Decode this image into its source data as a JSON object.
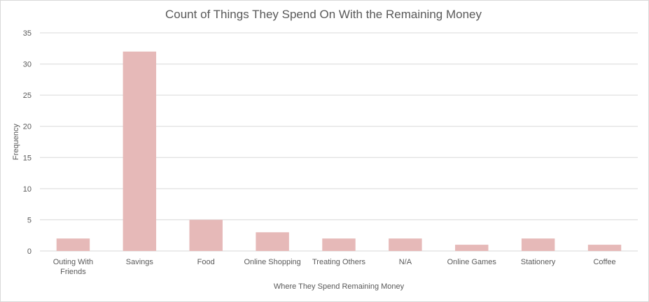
{
  "chart_data": {
    "type": "bar",
    "title": "Count of Things They Spend On With the Remaining Money",
    "xlabel": "Where They Spend Remaining Money",
    "ylabel": "Frequency",
    "categories": [
      [
        "Outing With",
        "Friends"
      ],
      [
        "Savings"
      ],
      [
        "Food"
      ],
      [
        "Online Shopping"
      ],
      [
        "Treating Others"
      ],
      [
        "N/A"
      ],
      [
        "Online Games"
      ],
      [
        "Stationery"
      ],
      [
        "Coffee"
      ]
    ],
    "values": [
      2,
      32,
      5,
      3,
      2,
      2,
      1,
      2,
      1
    ],
    "ylim": [
      0,
      35
    ],
    "yticks": [
      0,
      5,
      10,
      15,
      20,
      25,
      30,
      35
    ],
    "grid": true,
    "legend": "none",
    "colors": {
      "bar": "#e6b9b8",
      "grid": "#d9d9d9",
      "text": "#595959"
    }
  }
}
